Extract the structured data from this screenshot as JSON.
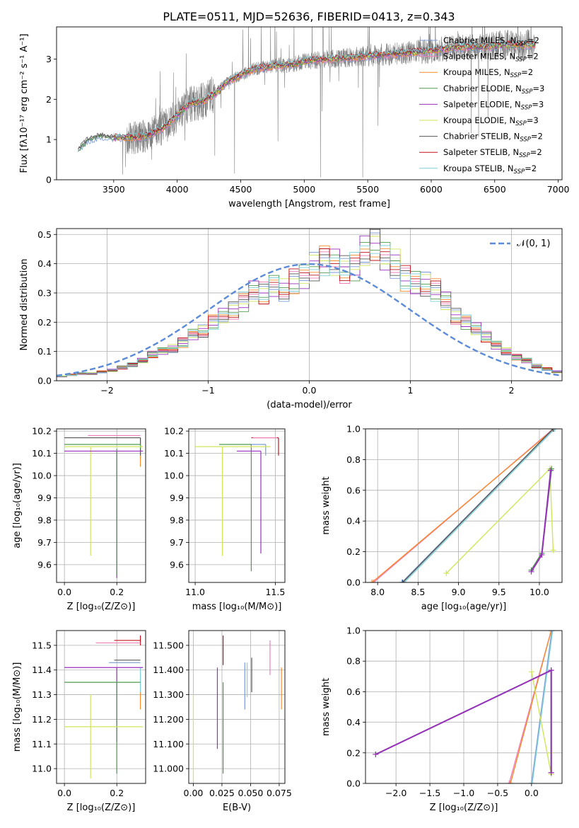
{
  "title": "PLATE=0511, MJD=52636, FIBERID=0413, z=0.343",
  "colors": {
    "Chabrier MILES": "#7a9ad6",
    "Salpeter MILES": "#f07fb9",
    "Kroupa MILES": "#f58c2e",
    "Chabrier ELODIE": "#4f9c4f",
    "Salpeter ELODIE": "#9a2fbf",
    "Kroupa ELODIE": "#cfe65a",
    "Chabrier STELIB": "#555555",
    "Salpeter STELIB": "#c0141c",
    "Kroupa STELIB": "#7fd0d8",
    "data": "#808080",
    "gauss": "#5b8bd8",
    "ssp_line": "#8e44ad"
  },
  "legend_spectrum": [
    {
      "key": "Chabrier MILES",
      "base": "Chabrier MILES, N",
      "sub": "SSP",
      "tail": "=2"
    },
    {
      "key": "Salpeter MILES",
      "base": "Salpeter MILES, N",
      "sub": "SSP",
      "tail": "=2"
    },
    {
      "key": "Kroupa MILES",
      "base": "Kroupa MILES, N",
      "sub": "SSP",
      "tail": "=2"
    },
    {
      "key": "Chabrier ELODIE",
      "base": "Chabrier ELODIE, N",
      "sub": "SSP",
      "tail": "=3"
    },
    {
      "key": "Salpeter ELODIE",
      "base": "Salpeter ELODIE, N",
      "sub": "SSP",
      "tail": "=3"
    },
    {
      "key": "Kroupa ELODIE",
      "base": "Kroupa ELODIE, N",
      "sub": "SSP",
      "tail": "=3"
    },
    {
      "key": "Chabrier STELIB",
      "base": "Chabrier STELIB, N",
      "sub": "SSP",
      "tail": "=2"
    },
    {
      "key": "Salpeter STELIB",
      "base": "Salpeter STELIB, N",
      "sub": "SSP",
      "tail": "=2"
    },
    {
      "key": "Kroupa STELIB",
      "base": "Kroupa STELIB, N",
      "sub": "SSP",
      "tail": "=2"
    }
  ],
  "chart_data": [
    {
      "id": "spectrum",
      "type": "line",
      "xlabel": "wavelength [Angstrom, rest frame]",
      "ylabel": "Flux [fλ10⁻¹⁷ erg cm⁻² s⁻¹ A⁻¹]",
      "xlim": [
        3050,
        7030
      ],
      "ylim": [
        0,
        3.8
      ],
      "xticks": [
        3500,
        4000,
        4500,
        5000,
        5500,
        6000,
        6500,
        7000
      ],
      "yticks": [
        0,
        1,
        2,
        3
      ],
      "grid": false,
      "legend": "right",
      "data_range": [
        3220,
        6820
      ],
      "model_continuum": {
        "x": [
          3220,
          3300,
          3400,
          3500,
          3600,
          3700,
          3800,
          3900,
          4000,
          4100,
          4200,
          4300,
          4400,
          4500,
          4600,
          4700,
          4800,
          4900,
          5000,
          5200,
          5400,
          5600,
          5800,
          6000,
          6200,
          6400,
          6600,
          6800
        ],
        "y": [
          0.75,
          1.0,
          1.1,
          1.05,
          1.05,
          1.05,
          1.15,
          1.3,
          1.6,
          1.9,
          1.95,
          2.15,
          2.45,
          2.6,
          2.75,
          2.8,
          2.85,
          2.85,
          2.95,
          3.0,
          3.05,
          3.1,
          3.15,
          3.2,
          3.3,
          3.3,
          3.35,
          3.35
        ]
      }
    },
    {
      "id": "residuals",
      "type": "histogram",
      "xlabel": "(data-model)/error",
      "ylabel": "Normed distribution",
      "xlim": [
        -2.5,
        2.5
      ],
      "ylim": [
        0,
        0.52
      ],
      "xticks": [
        -2,
        -1,
        0,
        1,
        2
      ],
      "yticks": [
        0.0,
        0.1,
        0.2,
        0.3,
        0.4,
        0.5
      ],
      "grid": true,
      "legend": "top-right",
      "legend_label": "𝒩(0, 1)",
      "bin_width": 0.1,
      "bin_start": -2.5,
      "values": [
        0.015,
        0.02,
        0.025,
        0.025,
        0.03,
        0.035,
        0.045,
        0.055,
        0.07,
        0.09,
        0.1,
        0.11,
        0.13,
        0.16,
        0.17,
        0.2,
        0.22,
        0.24,
        0.27,
        0.31,
        0.3,
        0.32,
        0.31,
        0.34,
        0.36,
        0.39,
        0.41,
        0.4,
        0.38,
        0.39,
        0.45,
        0.47,
        0.42,
        0.4,
        0.35,
        0.34,
        0.33,
        0.31,
        0.27,
        0.22,
        0.2,
        0.18,
        0.15,
        0.12,
        0.1,
        0.08,
        0.07,
        0.05,
        0.04,
        0.03
      ],
      "gaussian": {
        "mu": 0,
        "sigma": 1
      }
    },
    {
      "id": "age_vs_Z",
      "type": "errorbar",
      "xlabel": "Z [log₁₀(Z/Z⊙)]",
      "ylabel": "age  [log₁₀(age/yr)]",
      "xlim": [
        -0.03,
        0.31
      ],
      "ylim": [
        9.52,
        10.21
      ],
      "xticks": [
        0.0,
        0.2
      ],
      "yticks": [
        9.6,
        9.7,
        9.8,
        9.9,
        10.0,
        10.1,
        10.2
      ],
      "grid": true,
      "points": [
        {
          "key": "Salpeter MILES",
          "x": 0.29,
          "xerr": [
            0.2,
            0.0
          ],
          "y": 10.18,
          "yerr": [
            0.0,
            0.0
          ]
        },
        {
          "key": "Kroupa MILES",
          "x": 0.29,
          "xerr": [
            0.0,
            0.0
          ],
          "y": 10.17,
          "yerr": [
            0.13,
            0.0
          ]
        },
        {
          "key": "Chabrier STELIB",
          "x": 0.29,
          "xerr": [
            0.29,
            0.0
          ],
          "y": 10.17,
          "yerr": [
            0.08,
            0.0
          ]
        },
        {
          "key": "Chabrier ELODIE",
          "x": 0.29,
          "xerr": [
            0.29,
            0.0
          ],
          "y": 10.14,
          "yerr": [
            0.02,
            0.0
          ]
        },
        {
          "key": "Kroupa ELODIE",
          "x": 0.1,
          "xerr": [
            0.1,
            0.2
          ],
          "y": 10.13,
          "yerr": [
            0.49,
            0.0
          ]
        },
        {
          "key": "Salpeter ELODIE",
          "x": 0.2,
          "xerr": [
            0.2,
            0.1
          ],
          "y": 10.11,
          "yerr": [
            0.57,
            0.0
          ]
        },
        {
          "key": "Chabrier ELODIE",
          "x": 0.2,
          "xerr": [
            0.0,
            0.0
          ],
          "y": 10.12,
          "yerr": [
            0.57,
            0.0
          ]
        }
      ]
    },
    {
      "id": "age_vs_mass",
      "type": "errorbar",
      "xlabel": "mass [log₁₀(M/M⊙)]",
      "ylabel": "",
      "xlim": [
        10.96,
        11.56
      ],
      "ylim": [
        9.52,
        10.21
      ],
      "xticks": [
        11.0,
        11.5
      ],
      "yticks": [
        9.6,
        9.7,
        9.8,
        9.9,
        10.0,
        10.1,
        10.2
      ],
      "grid": true,
      "points": [
        {
          "key": "Salpeter STELIB",
          "x": 11.52,
          "xerr": [
            0.17,
            0.0
          ],
          "y": 10.17,
          "yerr": [
            0.08,
            0.0
          ]
        },
        {
          "key": "Salpeter MILES",
          "x": 11.51,
          "xerr": [
            0.15,
            0.0
          ],
          "y": 10.17,
          "yerr": [
            0.0,
            0.0
          ]
        },
        {
          "key": "Chabrier MILES",
          "x": 11.44,
          "xerr": [
            0.1,
            0.0
          ],
          "y": 10.14,
          "yerr": [
            0.05,
            0.0
          ]
        },
        {
          "key": "Chabrier ELODIE",
          "x": 11.35,
          "xerr": [
            0.2,
            0.0
          ],
          "y": 10.14,
          "yerr": [
            0.57,
            0.0
          ]
        },
        {
          "key": "Kroupa ELODIE",
          "x": 11.17,
          "xerr": [
            0.17,
            0.3
          ],
          "y": 10.13,
          "yerr": [
            0.49,
            0.0
          ]
        },
        {
          "key": "Salpeter ELODIE",
          "x": 11.41,
          "xerr": [
            0.15,
            0.0
          ],
          "y": 10.11,
          "yerr": [
            0.46,
            0.0
          ]
        }
      ]
    },
    {
      "id": "mass_weight_vs_age",
      "type": "line",
      "xlabel": "age  [log₁₀(age/yr)]",
      "ylabel": "mass weight",
      "xlim": [
        7.85,
        10.28
      ],
      "ylim": [
        0,
        1.0
      ],
      "xticks": [
        8.0,
        8.5,
        9.0,
        9.5,
        10.0
      ],
      "yticks": [
        0.0,
        0.2,
        0.4,
        0.6,
        0.8,
        1.0
      ],
      "grid": true,
      "series": [
        {
          "key": "Chabrier MILES",
          "x": [
            8.3,
            10.17
          ],
          "y": [
            0.0,
            1.0
          ]
        },
        {
          "key": "Salpeter MILES",
          "x": [
            7.95,
            10.17
          ],
          "y": [
            0.0,
            1.0
          ]
        },
        {
          "key": "Kroupa MILES",
          "x": [
            7.93,
            10.18
          ],
          "y": [
            0.0,
            1.0
          ]
        },
        {
          "key": "Kroupa STELIB",
          "x": [
            8.33,
            10.19
          ],
          "y": [
            0.0,
            1.0
          ]
        },
        {
          "key": "Chabrier STELIB",
          "x": [
            8.31,
            10.17
          ],
          "y": [
            0.0,
            1.0
          ]
        },
        {
          "key": "Kroupa ELODIE",
          "x": [
            8.85,
            10.13,
            10.17
          ],
          "y": [
            0.06,
            0.74,
            0.21
          ]
        },
        {
          "key": "Chabrier ELODIE",
          "x": [
            9.9,
            10.03,
            10.15
          ],
          "y": [
            0.08,
            0.19,
            0.74
          ]
        },
        {
          "key": "Salpeter ELODIE",
          "x": [
            9.9,
            10.03,
            10.14
          ],
          "y": [
            0.07,
            0.18,
            0.73
          ]
        }
      ]
    },
    {
      "id": "mass_vs_Z",
      "type": "errorbar",
      "xlabel": "Z [log₁₀(Z/Z⊙)]",
      "ylabel": "mass [log₁₀(M/M⊙)]",
      "xlim": [
        -0.03,
        0.31
      ],
      "ylim": [
        10.94,
        11.56
      ],
      "xticks": [
        0.0,
        0.2
      ],
      "yticks": [
        11.0,
        11.1,
        11.2,
        11.3,
        11.4,
        11.5
      ],
      "grid": true,
      "points": [
        {
          "key": "Salpeter STELIB",
          "x": 0.29,
          "xerr": [
            0.1,
            0.0
          ],
          "y": 11.52,
          "yerr": [
            0.02,
            0.02
          ]
        },
        {
          "key": "Salpeter MILES",
          "x": 0.29,
          "xerr": [
            0.17,
            0.0
          ],
          "y": 11.51,
          "yerr": [
            0.0,
            0.0
          ]
        },
        {
          "key": "Chabrier STELIB",
          "x": 0.29,
          "xerr": [
            0.1,
            0.0
          ],
          "y": 11.44,
          "yerr": [
            0.0,
            0.0
          ]
        },
        {
          "key": "Chabrier MILES",
          "x": 0.29,
          "xerr": [
            0.12,
            0.0
          ],
          "y": 11.43,
          "yerr": [
            0.0,
            0.0
          ]
        },
        {
          "key": "Kroupa MILES",
          "x": 0.29,
          "xerr": [
            0.0,
            0.0
          ],
          "y": 11.39,
          "yerr": [
            0.15,
            0.0
          ]
        },
        {
          "key": "Kroupa STELIB",
          "x": 0.29,
          "xerr": [
            0.0,
            0.0
          ],
          "y": 11.41,
          "yerr": [
            0.1,
            0.0
          ]
        },
        {
          "key": "Salpeter ELODIE",
          "x": 0.2,
          "xerr": [
            0.2,
            0.1
          ],
          "y": 11.41,
          "yerr": [
            0.3,
            0.0
          ]
        },
        {
          "key": "Chabrier ELODIE",
          "x": 0.2,
          "xerr": [
            0.2,
            0.09
          ],
          "y": 11.35,
          "yerr": [
            0.37,
            0.0
          ]
        },
        {
          "key": "Kroupa ELODIE",
          "x": 0.1,
          "xerr": [
            0.1,
            0.2
          ],
          "y": 11.17,
          "yerr": [
            0.21,
            0.13
          ]
        }
      ]
    },
    {
      "id": "mass_vs_EBV",
      "type": "errorbar",
      "xlabel": "E(B-V)",
      "ylabel": "",
      "xlim": [
        -0.004,
        0.08
      ],
      "ylim": [
        10.94,
        11.56
      ],
      "xticks": [
        0.0,
        0.025,
        0.05,
        0.075
      ],
      "yticks": [
        11.0,
        11.1,
        11.2,
        11.3,
        11.4,
        11.5
      ],
      "grid": true,
      "points": [
        {
          "key": "Kroupa ELODIE",
          "x": 0.0,
          "y": 11.17,
          "yerr": [
            0.22,
            0.13
          ]
        },
        {
          "key": "Salpeter ELODIE",
          "x": 0.021,
          "y": 11.41,
          "yerr": [
            0.33,
            0.0
          ]
        },
        {
          "key": "Chabrier ELODIE",
          "x": 0.026,
          "y": 11.35,
          "yerr": [
            0.37,
            0.0
          ]
        },
        {
          "key": "Salpeter STELIB",
          "x": 0.026,
          "y": 11.47,
          "yerr": [
            0.05,
            0.07
          ]
        },
        {
          "key": "Chabrier MILES",
          "x": 0.045,
          "y": 11.36,
          "yerr": [
            0.12,
            0.07
          ]
        },
        {
          "key": "Kroupa STELIB",
          "x": 0.047,
          "y": 11.36,
          "yerr": [
            0.07,
            0.07
          ]
        },
        {
          "key": "Chabrier STELIB",
          "x": 0.051,
          "y": 11.37,
          "yerr": [
            0.06,
            0.08
          ]
        },
        {
          "key": "Salpeter MILES",
          "x": 0.067,
          "y": 11.45,
          "yerr": [
            0.07,
            0.07
          ]
        },
        {
          "key": "Kroupa MILES",
          "x": 0.077,
          "y": 11.34,
          "yerr": [
            0.1,
            0.07
          ]
        }
      ]
    },
    {
      "id": "mass_weight_vs_Z",
      "type": "line",
      "xlabel": "Z [log₁₀(Z/Z⊙)]",
      "ylabel": "mass weight",
      "xlim": [
        -2.45,
        0.45
      ],
      "ylim": [
        0,
        1.0
      ],
      "xticks": [
        -2.0,
        -1.5,
        -1.0,
        -0.5,
        0.0
      ],
      "yticks": [
        0.0,
        0.2,
        0.4,
        0.6,
        0.8,
        1.0
      ],
      "grid": true,
      "series": [
        {
          "key": "Salpeter MILES",
          "x": [
            -0.33,
            0.29
          ],
          "y": [
            0.0,
            1.0
          ]
        },
        {
          "key": "Kroupa MILES",
          "x": [
            -0.31,
            0.29
          ],
          "y": [
            0.0,
            1.0
          ]
        },
        {
          "key": "Chabrier MILES",
          "x": [
            0.0,
            0.3
          ],
          "y": [
            0.0,
            1.0
          ]
        },
        {
          "key": "Kroupa STELIB",
          "x": [
            0.01,
            0.31
          ],
          "y": [
            0.0,
            1.0
          ]
        },
        {
          "key": "Kroupa ELODIE",
          "x": [
            0.0,
            0.29,
            0.29
          ],
          "y": [
            0.73,
            0.06,
            0.2
          ]
        },
        {
          "key": "Chabrier ELODIE",
          "x": [
            -2.3,
            0.29,
            0.29
          ],
          "y": [
            0.19,
            0.74,
            0.07
          ]
        },
        {
          "key": "Salpeter ELODIE",
          "x": [
            -2.3,
            0.29,
            0.29
          ],
          "y": [
            0.19,
            0.74,
            0.07
          ]
        }
      ]
    }
  ]
}
